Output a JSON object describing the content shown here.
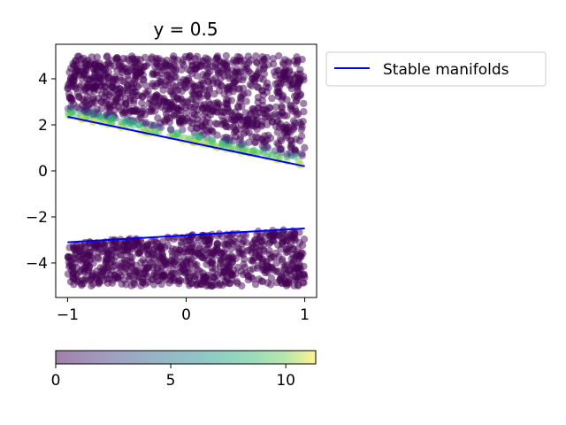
{
  "chart_data": {
    "type": "scatter",
    "title": "y = 0.5",
    "xlabel": "",
    "ylabel": "",
    "xlim": [
      -1.1,
      1.1
    ],
    "ylim": [
      -5.5,
      5.5
    ],
    "xticks": [
      -1,
      0,
      1
    ],
    "yticks": [
      -4,
      -2,
      0,
      2,
      4
    ],
    "xtick_labels": [
      "−1",
      "0",
      "1"
    ],
    "ytick_labels": [
      "−4",
      "−2",
      "0",
      "2",
      "4"
    ],
    "grid": false,
    "legend_position": "outside-top-right",
    "series": [
      {
        "name": "Stable manifolds",
        "type": "line",
        "color": "#0000ff",
        "segments": [
          {
            "x": [
              -1,
              1
            ],
            "y": [
              2.35,
              0.2
            ]
          },
          {
            "x": [
              -1,
              1
            ],
            "y": [
              -3.1,
              -2.5
            ]
          }
        ]
      },
      {
        "name": "",
        "type": "scatter",
        "colormap": "viridis",
        "alpha": 0.5,
        "regions": [
          {
            "x_range": [
              -1,
              1
            ],
            "y_top": 5,
            "y_bottom_at_xmin": 2.35,
            "y_bottom_at_xmax": 0.2,
            "value_bulk": 0,
            "value_near_manifold": 11
          },
          {
            "x_range": [
              -1,
              1
            ],
            "y_bottom": -5,
            "y_top_at_xmin": -3.1,
            "y_top_at_xmax": -2.5,
            "value_bulk": 0
          }
        ]
      }
    ],
    "colorbar": {
      "colormap": "viridis",
      "range": [
        0,
        11.3
      ],
      "ticks": [
        0,
        5,
        10
      ],
      "tick_labels": [
        "0",
        "5",
        "10"
      ],
      "orientation": "horizontal",
      "alpha": 0.5
    }
  }
}
